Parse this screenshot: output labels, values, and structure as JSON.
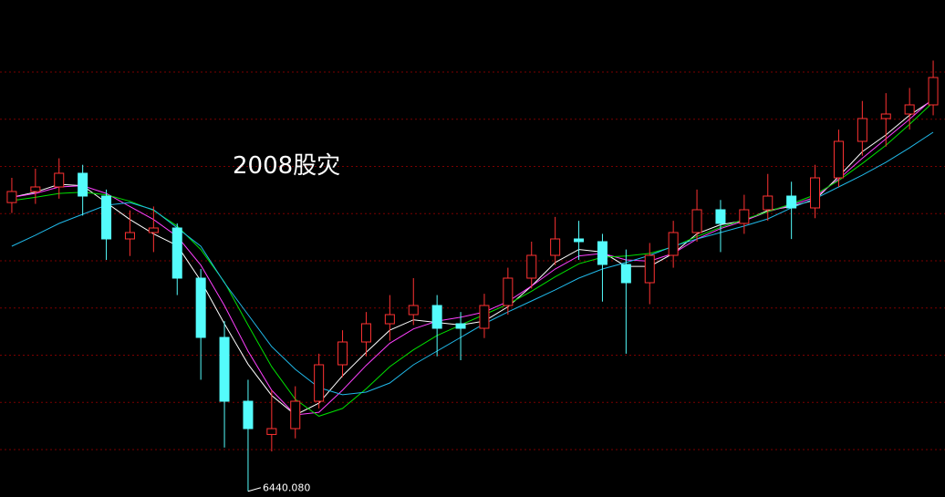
{
  "chart_data": {
    "type": "candlestick",
    "annotation": "2008股灾",
    "low_marker": {
      "value": 6440.08,
      "label": "6440.080"
    },
    "ylim": [
      6000,
      44150
    ],
    "grid": true,
    "up_color": "#ff3232",
    "down_color": "#54fcfc",
    "open": [
      28600,
      29450,
      29800,
      30850,
      29100,
      25810,
      26300,
      26650,
      22800,
      18250,
      13350,
      10800,
      11250,
      13350,
      16150,
      17900,
      19300,
      20000,
      20700,
      19300,
      18950,
      20700,
      22800,
      24550,
      25810,
      25600,
      23850,
      22450,
      24550,
      26300,
      28050,
      27000,
      28050,
      29100,
      28190,
      30500,
      33300,
      35050,
      35400,
      36100
    ],
    "high": [
      30500,
      31200,
      32000,
      31500,
      29600,
      28000,
      28300,
      27000,
      23500,
      19500,
      15000,
      14200,
      14500,
      17000,
      18800,
      20200,
      21500,
      22800,
      21500,
      20200,
      21600,
      23600,
      25600,
      27500,
      27200,
      26200,
      25000,
      25500,
      27200,
      29600,
      28800,
      29200,
      30800,
      30200,
      31500,
      34200,
      36400,
      37000,
      37400,
      39500
    ],
    "low": [
      27800,
      28500,
      28900,
      27600,
      24200,
      24500,
      24800,
      21500,
      15000,
      9800,
      6440.08,
      9500,
      10500,
      12800,
      15200,
      16800,
      18000,
      19200,
      16800,
      16500,
      18200,
      20000,
      22000,
      23800,
      24200,
      21000,
      17000,
      20800,
      23600,
      25600,
      24800,
      26200,
      27200,
      25800,
      27400,
      29800,
      32200,
      32900,
      34200,
      35300
    ],
    "close": [
      29450,
      29800,
      30850,
      29100,
      25810,
      26300,
      26650,
      22800,
      18250,
      13350,
      11250,
      11250,
      13350,
      16150,
      17900,
      19300,
      20000,
      20700,
      18950,
      18950,
      20700,
      22800,
      24550,
      25810,
      25600,
      23850,
      22450,
      24550,
      26300,
      28050,
      27000,
      28050,
      29100,
      28190,
      30500,
      33300,
      35050,
      35400,
      36100,
      38200
    ],
    "moving_averages": [
      {
        "color": "#ffffff",
        "values": [
          29000,
          29400,
          30000,
          29900,
          28600,
          27300,
          26200,
          25300,
          22600,
          19300,
          16200,
          13800,
          12300,
          13200,
          15300,
          17100,
          18800,
          19600,
          19400,
          19200,
          19500,
          20600,
          22200,
          24000,
          25000,
          24800,
          23700,
          23700,
          24700,
          26200,
          26900,
          27200,
          28000,
          28300,
          28800,
          30600,
          32500,
          33800,
          35300,
          36500
        ]
      },
      {
        "color": "#ff40ff",
        "values": [
          29000,
          29300,
          29800,
          29900,
          29300,
          28300,
          27300,
          26000,
          23800,
          20700,
          17200,
          14200,
          12300,
          12500,
          14200,
          16100,
          17800,
          18900,
          19500,
          19800,
          20200,
          21000,
          22200,
          23500,
          24500,
          24700,
          24200,
          24100,
          24700,
          25800,
          26600,
          27200,
          27900,
          28400,
          29000,
          30400,
          32000,
          33500,
          35000,
          36600
        ]
      },
      {
        "color": "#00e000",
        "values": [
          28750,
          29000,
          29300,
          29400,
          29200,
          28700,
          28000,
          26800,
          25000,
          22500,
          19200,
          16000,
          13500,
          12200,
          12800,
          14300,
          16000,
          17300,
          18400,
          19200,
          20000,
          20800,
          21800,
          22900,
          23900,
          24400,
          24500,
          24700,
          25200,
          26000,
          26700,
          27300,
          27900,
          28500,
          29200,
          30300,
          31600,
          33000,
          34600,
          36300
        ]
      },
      {
        "color": "#20b8e8",
        "values": [
          25250,
          26100,
          27000,
          27700,
          28400,
          28600,
          28050,
          26650,
          25250,
          22450,
          20000,
          17550,
          15800,
          14400,
          13850,
          14050,
          14750,
          16150,
          17200,
          18250,
          19300,
          20200,
          21050,
          21900,
          22800,
          23500,
          24000,
          24550,
          25250,
          25800,
          26300,
          26800,
          27350,
          28200,
          28900,
          29800,
          30700,
          31700,
          32800,
          34000
        ]
      }
    ]
  }
}
